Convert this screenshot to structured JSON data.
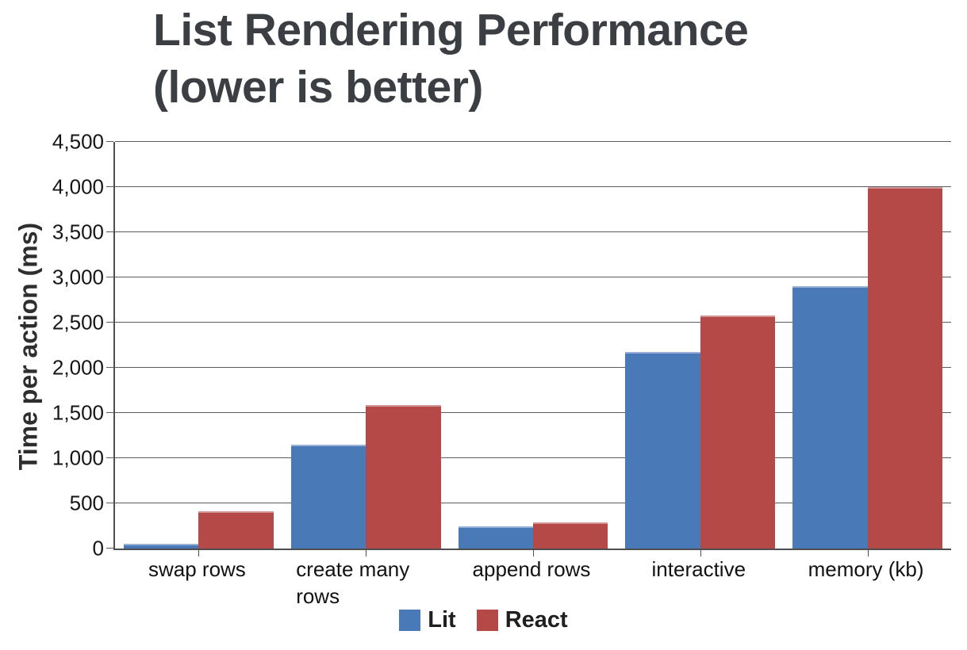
{
  "header": {
    "title": "List Rendering Performance",
    "subtitle": "(lower is better)"
  },
  "chart_data": {
    "type": "bar",
    "title": "List Rendering Performance (lower is better)",
    "ylabel": "Time per action (ms)",
    "xlabel": "",
    "categories": [
      "swap rows",
      "create many rows",
      "append rows",
      "interactive",
      "memory (kb)"
    ],
    "series": [
      {
        "name": "Lit",
        "color": "#4a79b7",
        "values": [
          55,
          1150,
          250,
          2175,
          2900
        ]
      },
      {
        "name": "React",
        "color": "#b44947",
        "values": [
          410,
          1590,
          290,
          2575,
          4000
        ]
      }
    ],
    "ylim": [
      0,
      4500
    ],
    "ytick_step": 500,
    "ytick_labels": [
      "0",
      "500",
      "1,000",
      "1,500",
      "2,000",
      "2,500",
      "3,000",
      "3,500",
      "4,000",
      "4,500"
    ],
    "grid": true,
    "legend_position": "bottom"
  },
  "colors": {
    "grid": "#5c5c5e",
    "axis": "#4e4e50",
    "title_text": "#3b3e42",
    "tick_text": "#161616"
  }
}
